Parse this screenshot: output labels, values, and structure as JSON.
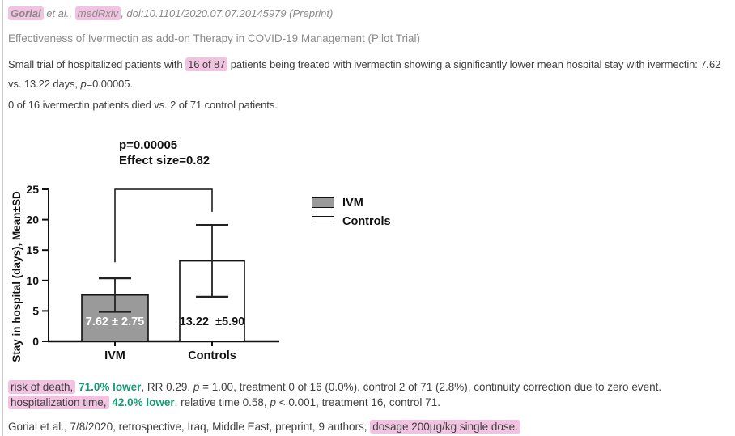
{
  "header": {
    "citation_author": "Gorial",
    "citation_mid": " et al., ",
    "citation_journal": "medRxiv",
    "citation_rest": ", doi:10.1101/2020.07.07.20145979 (Preprint)",
    "title": "Effectiveness of Ivermectin as add-on Therapy in COVID-19 Management (Pilot Trial)"
  },
  "summary": {
    "p1_a": "Small trial of hospitalized patients with ",
    "p1_hl": "16 of 87",
    "p1_b": " patients being treated with ivermectin showing a significantly lower mean hospital stay with ivermectin: 7.62 vs. 13.22 days, ",
    "p1_p": "p",
    "p1_c": "=0.00005.",
    "p2": "0 of 16 ivermectin patients died vs. 2 of 71 control patients."
  },
  "chart_data": {
    "type": "bar",
    "title_lines": [
      "p=0.00005",
      "Effect size=0.82"
    ],
    "categories": [
      "IVM",
      "Controls"
    ],
    "series": [
      {
        "name": "IVM",
        "mean": 7.62,
        "sd": 2.75,
        "fill": "#9a9a9a",
        "label": "7.62 ± 2.75",
        "label_color": "#ffffff"
      },
      {
        "name": "Controls",
        "mean": 13.22,
        "sd": 5.9,
        "fill": "#ffffff",
        "label": "13.22  ±5.90",
        "label_color": "#111111"
      }
    ],
    "ylabel": "Stay in hospital (days), Mean±SD",
    "xlabel": "",
    "yticks": [
      0,
      5,
      10,
      15,
      20,
      25
    ],
    "ylim": [
      0,
      25
    ],
    "grid": false,
    "legend_position": "right",
    "legend": [
      {
        "label": "IVM",
        "fill": "#9a9a9a"
      },
      {
        "label": "Controls",
        "fill": "#ffffff"
      }
    ],
    "bracket": {
      "from_category": 0,
      "to_category": 1,
      "top_value": 25,
      "left_drop_value": 13,
      "right_drop_value": 21.3
    }
  },
  "results": {
    "r1_hl": "risk of death,",
    "r1_a": " ",
    "r1_green": "71.0% lower",
    "r1_b": ", RR 0.29, ",
    "r1_p": "p",
    "r1_c": " = 1.00, treatment 0 of 16 (0.0%), control 2 of 71 (2.8%), continuity correction due to zero event.",
    "r2_hl": "hospitalization time,",
    "r2_a": " ",
    "r2_green": "42.0% lower",
    "r2_b": ", relative time 0.58, ",
    "r2_p": "p",
    "r2_c": " < 0.001, treatment 16, control 71.",
    "footer_a": "Gorial et al., 7/8/2020, retrospective, Iraq, Middle East, preprint, 9 authors, ",
    "footer_hl": "dosage 200µg/kg single dose."
  },
  "colors": {
    "highlight": "#f2c3e1",
    "green": "#169a74",
    "bar_gray": "#9a9a9a",
    "muted_text": "#8a8a8a",
    "body_text": "#3f3f3f"
  }
}
